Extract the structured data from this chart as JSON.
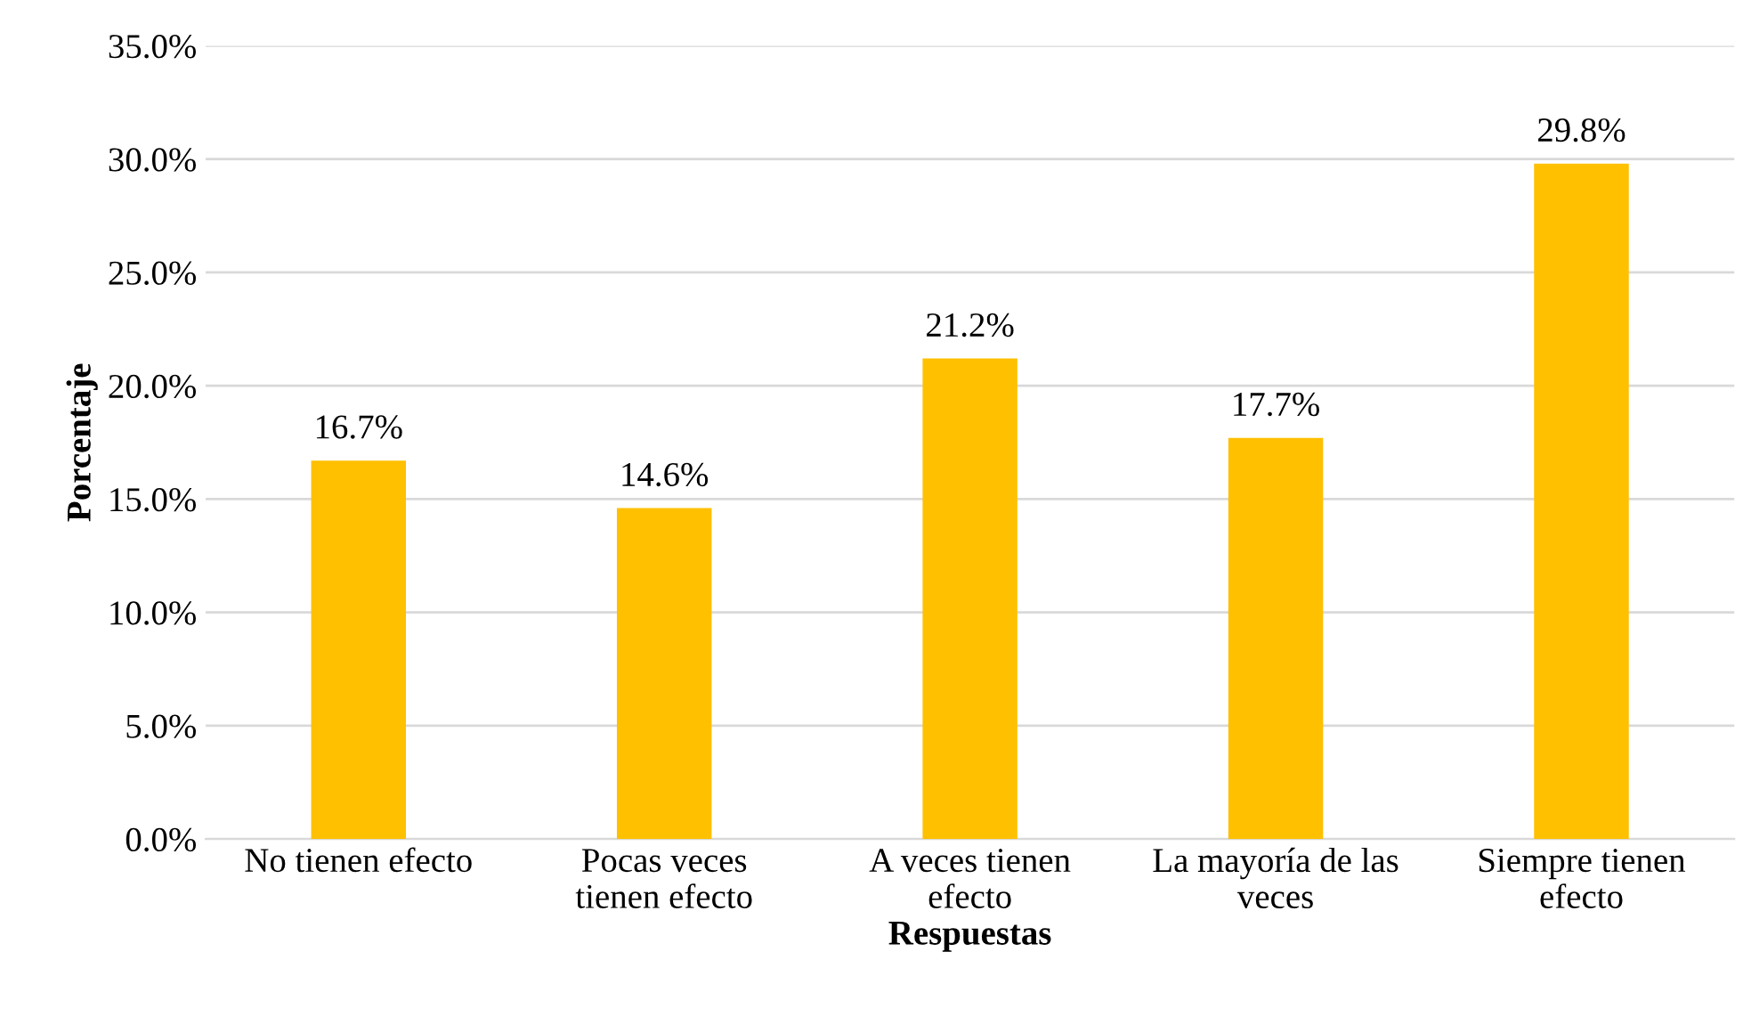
{
  "chart_data": {
    "type": "bar",
    "xlabel": "Respuestas",
    "ylabel": "Porcentaje",
    "categories": [
      "No tienen efecto",
      "Pocas veces tienen efecto",
      "A veces tienen efecto",
      "La mayoría de las veces",
      "Siempre tienen efecto"
    ],
    "values": [
      16.7,
      14.6,
      21.2,
      17.7,
      29.8
    ],
    "value_labels": [
      "16.7%",
      "14.6%",
      "21.2%",
      "17.7%",
      "29.8%"
    ],
    "color": "#ffc000",
    "ylim": [
      0,
      35
    ],
    "yticks": [
      {
        "value": 0,
        "label": "0.0%"
      },
      {
        "value": 5,
        "label": "5.0%"
      },
      {
        "value": 10,
        "label": "10.0%"
      },
      {
        "value": 15,
        "label": "15.0%"
      },
      {
        "value": 20,
        "label": "20.0%"
      },
      {
        "value": 25,
        "label": "25.0%"
      },
      {
        "value": 30,
        "label": "30.0%"
      },
      {
        "value": 35,
        "label": "35.0%"
      }
    ],
    "grid": "y"
  }
}
